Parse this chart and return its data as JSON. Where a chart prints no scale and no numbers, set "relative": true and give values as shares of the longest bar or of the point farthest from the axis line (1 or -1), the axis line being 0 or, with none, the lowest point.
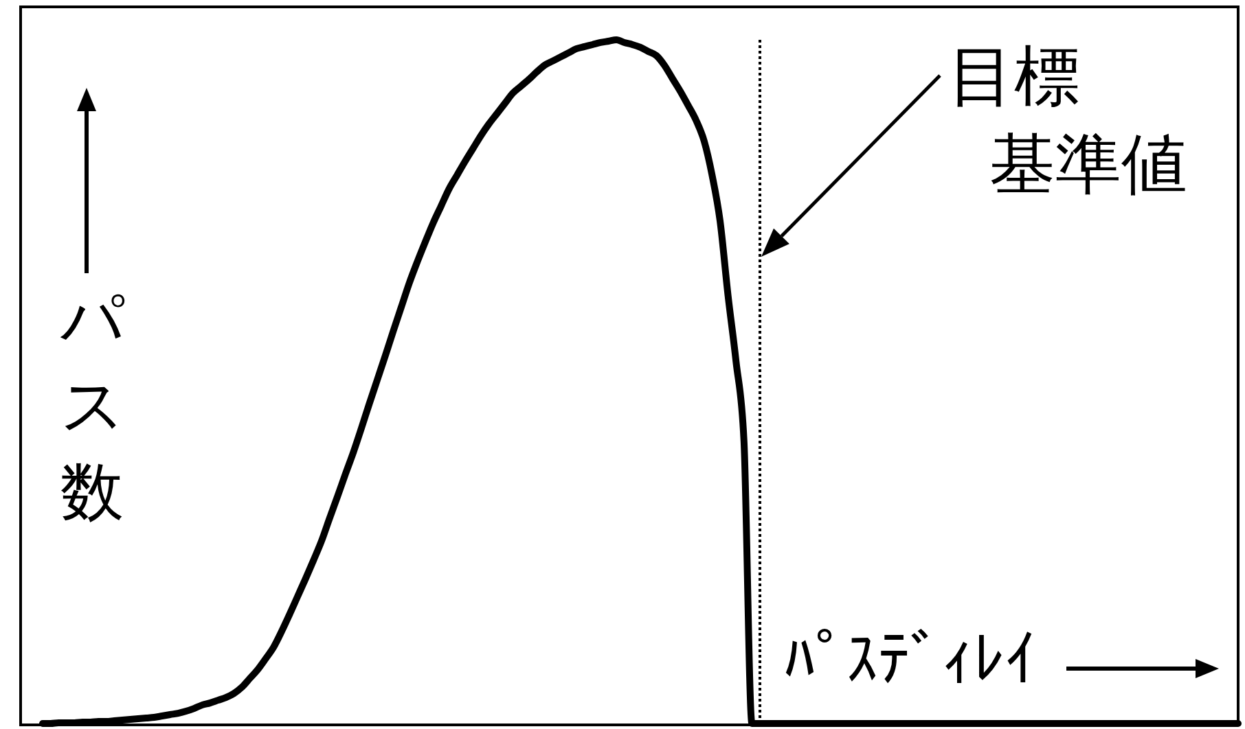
{
  "chart_data": {
    "type": "line",
    "relative": true,
    "tick_labels": false,
    "xlabel": "ﾊﾟｽﾃﾞｨﾚｲ",
    "ylabel": "パス数",
    "color": "#000000",
    "annotations": [
      "目標",
      "基準値"
    ],
    "categories": [
      null,
      null,
      null,
      null,
      null,
      null,
      null,
      null,
      null,
      null,
      null,
      null,
      null,
      null,
      null,
      null,
      null,
      null,
      null,
      null,
      null,
      null,
      null,
      null,
      null,
      null,
      null,
      null,
      null,
      null,
      null,
      null,
      null,
      null,
      null,
      null,
      null,
      null,
      null,
      null,
      null,
      null,
      null,
      null,
      null,
      null,
      null,
      null,
      null,
      null,
      null,
      null,
      null,
      null,
      null,
      null,
      null,
      null,
      null,
      null,
      null,
      null,
      null,
      null,
      null,
      null,
      null,
      null,
      null,
      null,
      null,
      null,
      null,
      null,
      null,
      null,
      null,
      null,
      null,
      null,
      null,
      null,
      null,
      null,
      null,
      null,
      null,
      null,
      null,
      null,
      null,
      null,
      null,
      null,
      null,
      null,
      null,
      null,
      null,
      null,
      null,
      null,
      null,
      null,
      null,
      null,
      null,
      null,
      null,
      null,
      null,
      null,
      null,
      null,
      null,
      null,
      null,
      null,
      null,
      null,
      null,
      null,
      null,
      null,
      null,
      null,
      null,
      null,
      null,
      null,
      null,
      null,
      null,
      null,
      null,
      null,
      null,
      null,
      null,
      null,
      null,
      null,
      null,
      null,
      null,
      null,
      null,
      null,
      null,
      null,
      null
    ],
    "values": [
      0,
      0,
      0.001,
      0.001,
      0.001,
      0.002,
      0.002,
      0.003,
      0.003,
      0.004,
      0.005,
      0.006,
      0.007,
      0.008,
      0.009,
      0.011,
      0.013,
      0.015,
      0.018,
      0.022,
      0.027,
      0.03,
      0.034,
      0.038,
      0.044,
      0.053,
      0.066,
      0.079,
      0.095,
      0.112,
      0.135,
      0.16,
      0.186,
      0.212,
      0.239,
      0.267,
      0.3,
      0.332,
      0.365,
      0.397,
      0.432,
      0.468,
      0.503,
      0.538,
      0.574,
      0.609,
      0.644,
      0.675,
      0.704,
      0.732,
      0.757,
      0.782,
      0.802,
      0.822,
      0.841,
      0.86,
      0.877,
      0.892,
      0.907,
      0.922,
      0.932,
      0.942,
      0.953,
      0.963,
      0.969,
      0.975,
      0.981,
      0.987,
      0.99,
      0.993,
      0.996,
      0.998,
      1,
      0.996,
      0.993,
      0.989,
      0.983,
      0.977,
      0.963,
      0.944,
      0.925,
      0.904,
      0.882,
      0.852,
      0.802,
      0.735,
      0.626,
      0.53,
      0.413,
      0,
      0,
      0,
      0,
      0,
      0,
      0,
      0,
      0,
      0,
      0,
      0,
      0,
      0,
      0,
      0,
      0,
      0,
      0,
      0,
      0,
      0,
      0,
      0,
      0,
      0,
      0,
      0,
      0,
      0,
      0,
      0,
      0,
      0,
      0,
      0,
      0,
      0,
      0,
      0,
      0,
      0,
      0,
      0,
      0,
      0,
      0,
      0,
      0,
      0,
      0,
      0,
      0,
      0,
      0,
      0,
      0,
      0,
      0,
      0,
      0,
      0
    ]
  }
}
